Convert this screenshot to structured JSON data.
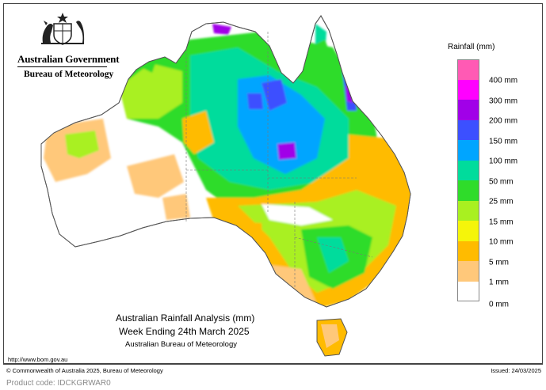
{
  "header": {
    "government": "Australian Government",
    "bureau": "Bureau of Meteorology"
  },
  "legend": {
    "title": "Rainfall (mm)",
    "labels": [
      "400 mm",
      "300 mm",
      "200 mm",
      "150 mm",
      "100 mm",
      "50 mm",
      "25 mm",
      "15 mm",
      "10 mm",
      "5 mm",
      "1 mm",
      "0 mm"
    ],
    "colors": [
      "#ff5ab4",
      "#ff00ff",
      "#a100e8",
      "#3c50ff",
      "#00a5ff",
      "#00dc9c",
      "#2fdc2a",
      "#a9f020",
      "#f5f50a",
      "#ffbb00",
      "#ffc87a",
      "#ffffff"
    ]
  },
  "titles": {
    "line1": "Australian Rainfall Analysis (mm)",
    "line2": "Week Ending 24th March 2025",
    "line3": "Australian Bureau of Meteorology"
  },
  "footer": {
    "url": "http://www.bom.gov.au",
    "copyright": "© Commonwealth of Australia 2025, Bureau of Meteorology",
    "issued": "Issued: 24/03/2025",
    "product": "Product code: IDCKGRWAR0"
  }
}
